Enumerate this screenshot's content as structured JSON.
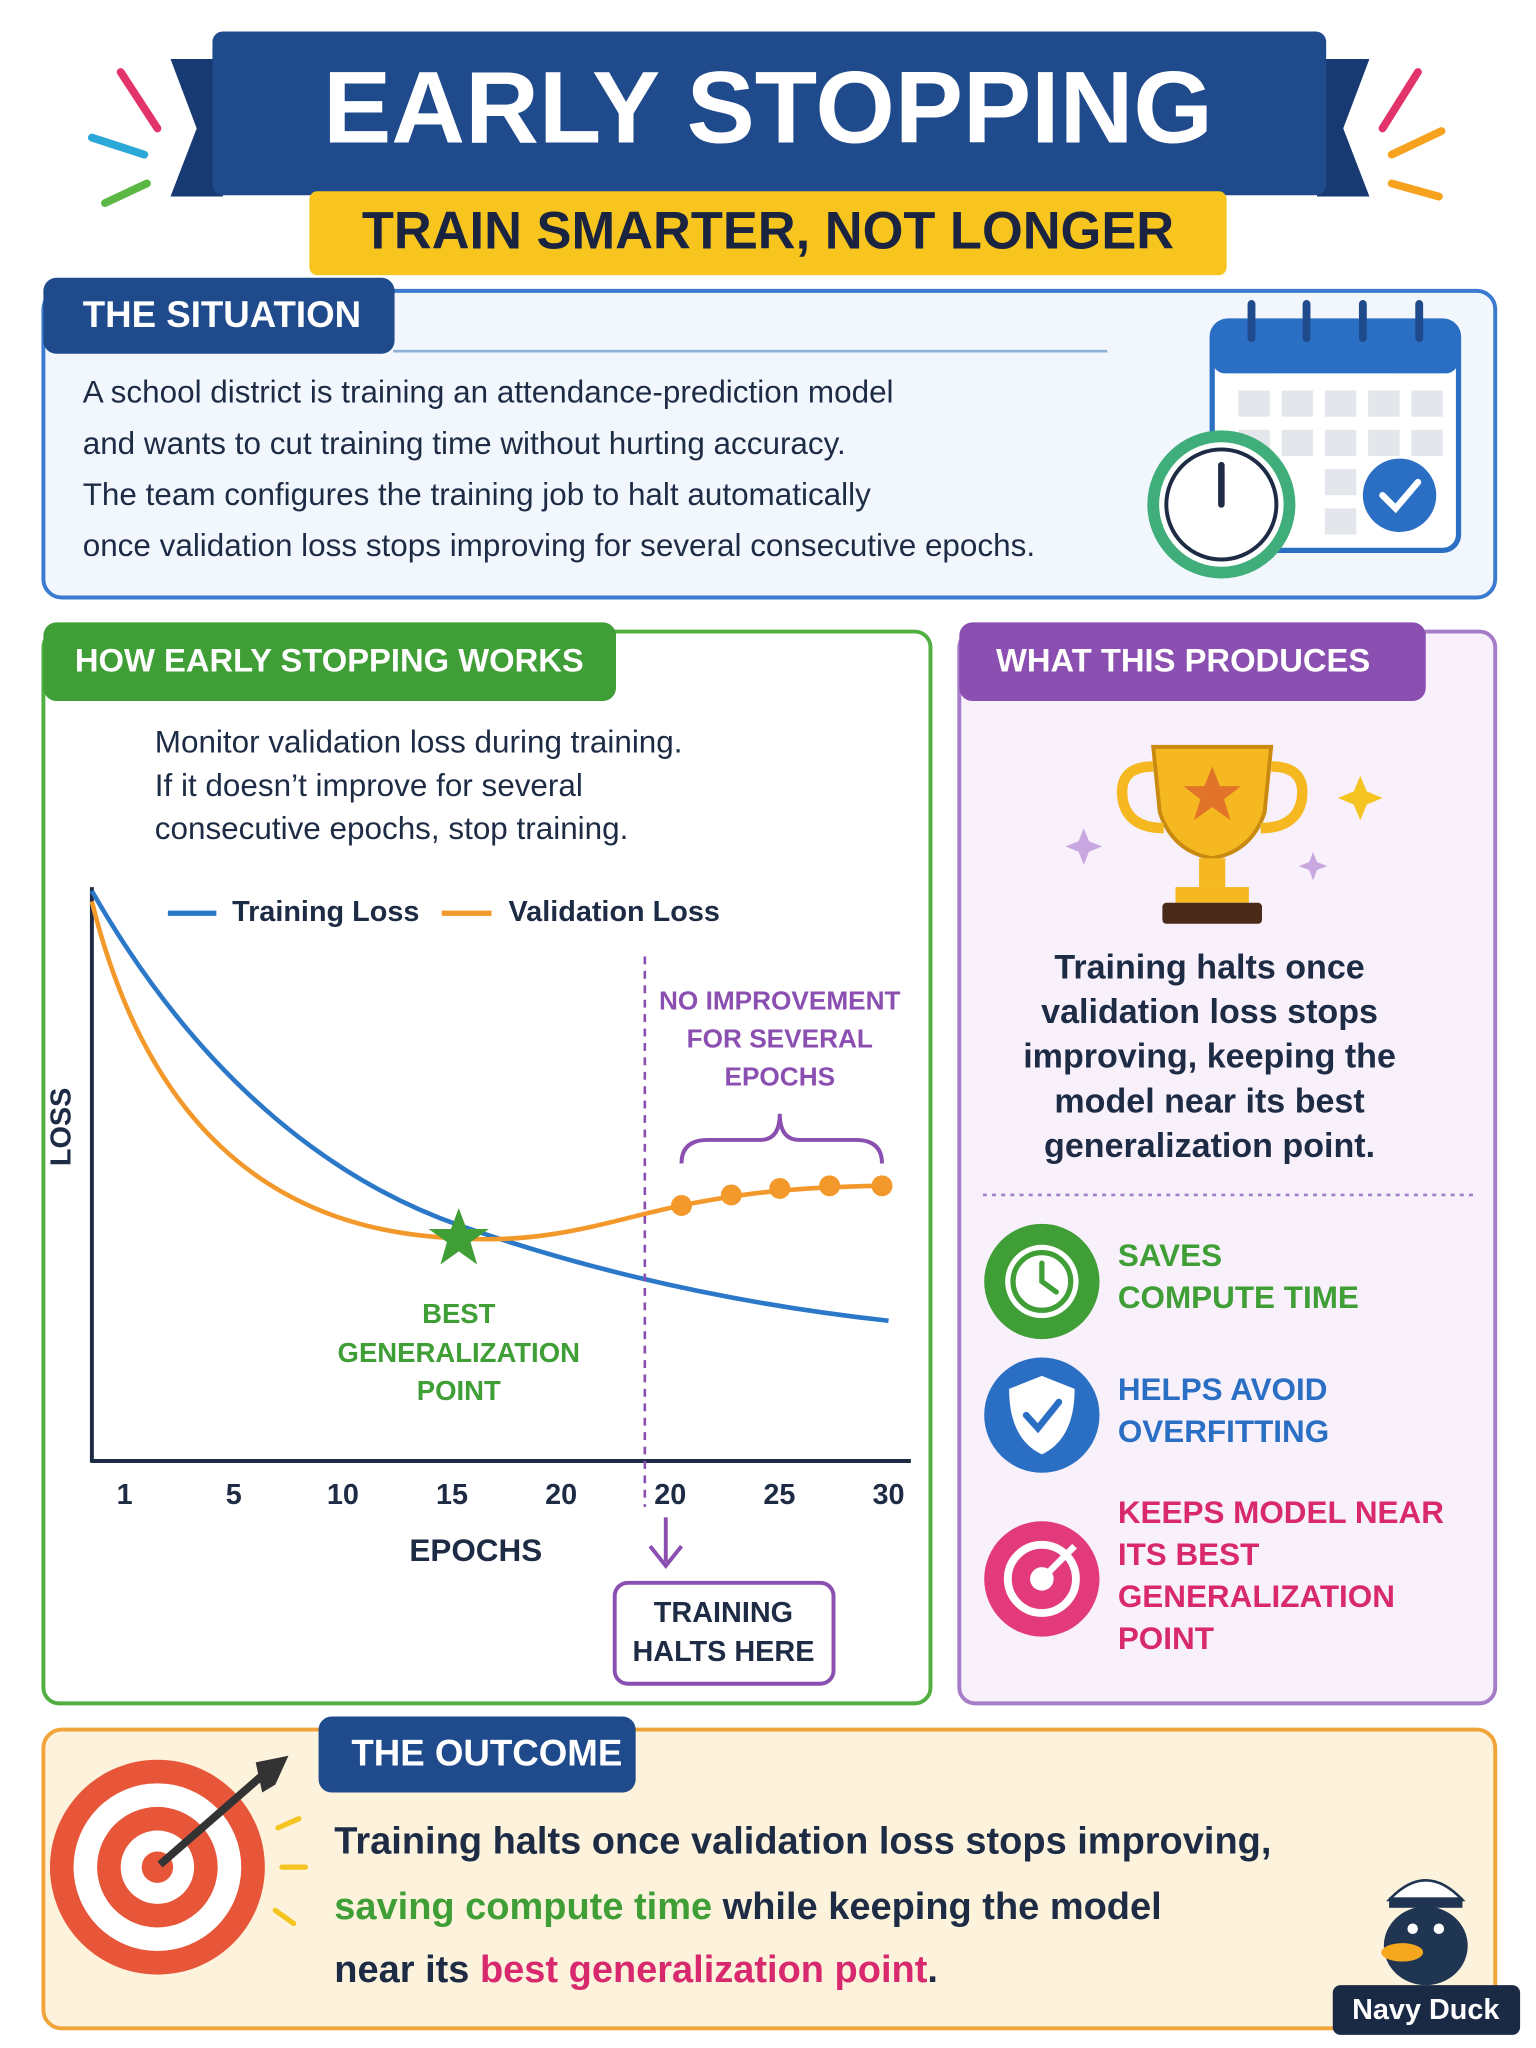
{
  "header": {
    "title": "EARLY STOPPING",
    "subtitle": "TRAIN SMARTER, NOT LONGER"
  },
  "situation": {
    "heading": "THE SITUATION",
    "lines": [
      "A school district is training an attendance-prediction model",
      "and wants to cut training time without hurting accuracy.",
      "The team configures the training job to halt automatically",
      "once validation loss stops improving for several consecutive epochs."
    ]
  },
  "how": {
    "heading": "HOW EARLY STOPPING WORKS",
    "lines": [
      "Monitor validation loss during training.",
      "If it doesn’t improve for several",
      "consecutive epochs, stop training."
    ],
    "chart": {
      "legend": [
        {
          "name": "Training Loss",
          "color": "#2b78c9"
        },
        {
          "name": "Validation Loss",
          "color": "#f3982a"
        }
      ],
      "categories": [
        "1",
        "5",
        "10",
        "15",
        "20",
        "20",
        "25",
        "30"
      ],
      "x_label": "EPOCHS",
      "y_label": "LOSS",
      "no_improvement": [
        "NO IMPROVEMENT",
        "FOR SEVERAL",
        "EPOCHS"
      ],
      "best_point": [
        "BEST",
        "GENERALIZATION",
        "POINT"
      ],
      "halt": [
        "TRAINING",
        "HALTS HERE"
      ]
    }
  },
  "produces": {
    "heading": "WHAT THIS PRODUCES",
    "summary": [
      "Training halts once",
      "validation loss stops",
      "improving, keeping the",
      "model near its best",
      "generalization point."
    ],
    "benefits": [
      {
        "lines": [
          "SAVES",
          "COMPUTE TIME"
        ]
      },
      {
        "lines": [
          "HELPS AVOID",
          "OVERFITTING"
        ]
      },
      {
        "lines": [
          "KEEPS MODEL NEAR",
          "ITS BEST",
          "GENERALIZATION",
          "POINT"
        ]
      }
    ]
  },
  "outcome": {
    "heading": "THE OUTCOME",
    "lines": [
      [
        "Training halts once validation loss stops improving,"
      ],
      [
        "saving compute time",
        " while keeping the model"
      ],
      [
        "near its ",
        "best generalization point",
        "."
      ]
    ]
  },
  "brand": "Navy Duck"
}
